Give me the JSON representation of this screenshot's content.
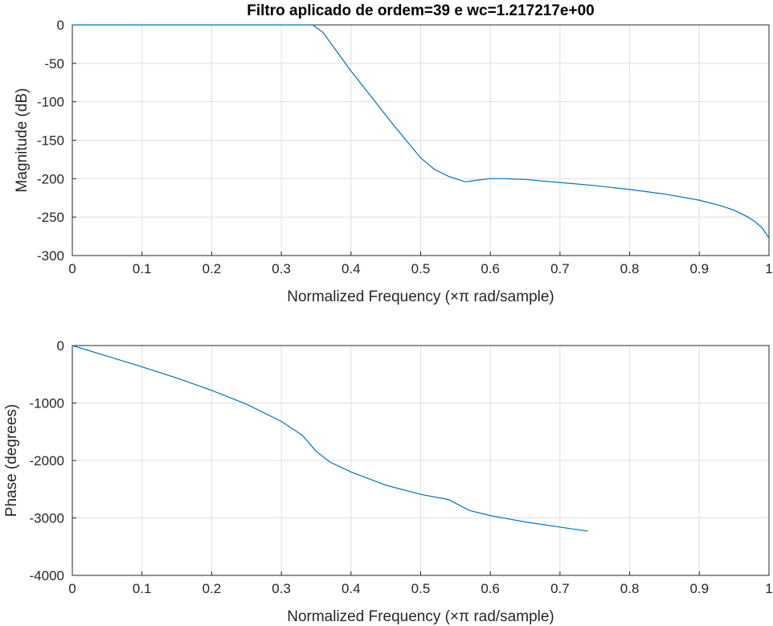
{
  "charts": [
    {
      "type": "line",
      "title": "Filtro aplicado de ordem=39 e wc=1.217217e+00",
      "xlabel": "Normalized Frequency  (×π rad/sample)",
      "ylabel": "Magnitude (dB)",
      "xlim": [
        0,
        1
      ],
      "ylim": [
        -300,
        0
      ],
      "xticks": [
        "0",
        "0.1",
        "0.2",
        "0.3",
        "0.4",
        "0.5",
        "0.6",
        "0.7",
        "0.8",
        "0.9",
        "1"
      ],
      "yticks": [
        "0",
        "-50",
        "-100",
        "-150",
        "-200",
        "-250",
        "-300"
      ],
      "grid": true,
      "color": "#0072BD",
      "series": [
        {
          "x": [
            0,
            0.1,
            0.2,
            0.3,
            0.33,
            0.345,
            0.36,
            0.38,
            0.4,
            0.42,
            0.44,
            0.46,
            0.48,
            0.5,
            0.52,
            0.54,
            0.56,
            0.565,
            0.58,
            0.6,
            0.62,
            0.65,
            0.7,
            0.75,
            0.8,
            0.85,
            0.9,
            0.93,
            0.95,
            0.97,
            0.98,
            0.99,
            1.0
          ],
          "y": [
            0,
            0,
            0,
            0,
            0,
            0,
            -10,
            -35,
            -60,
            -83,
            -106,
            -129,
            -151,
            -173,
            -188,
            -197,
            -203,
            -204,
            -202,
            -200,
            -200,
            -201,
            -205,
            -209,
            -214,
            -220,
            -228,
            -235,
            -241,
            -250,
            -256,
            -264,
            -277
          ]
        }
      ]
    },
    {
      "type": "line",
      "title": "",
      "xlabel": "Normalized Frequency  (×π rad/sample)",
      "ylabel": "Phase (degrees)",
      "xlim": [
        0,
        1
      ],
      "ylim": [
        -4000,
        0
      ],
      "xticks": [
        "0",
        "0.1",
        "0.2",
        "0.3",
        "0.4",
        "0.5",
        "0.6",
        "0.7",
        "0.8",
        "0.9",
        "1"
      ],
      "yticks": [
        "0",
        "-1000",
        "-2000",
        "-3000",
        "-4000"
      ],
      "grid": true,
      "color": "#0072BD",
      "series": [
        {
          "x": [
            0,
            0.05,
            0.1,
            0.15,
            0.2,
            0.25,
            0.3,
            0.33,
            0.35,
            0.37,
            0.4,
            0.45,
            0.5,
            0.54,
            0.57,
            0.6,
            0.65,
            0.7,
            0.74
          ],
          "y": [
            0,
            -185,
            -370,
            -565,
            -780,
            -1020,
            -1320,
            -1560,
            -1840,
            -2030,
            -2200,
            -2430,
            -2590,
            -2680,
            -2870,
            -2960,
            -3070,
            -3160,
            -3230
          ]
        }
      ]
    }
  ]
}
